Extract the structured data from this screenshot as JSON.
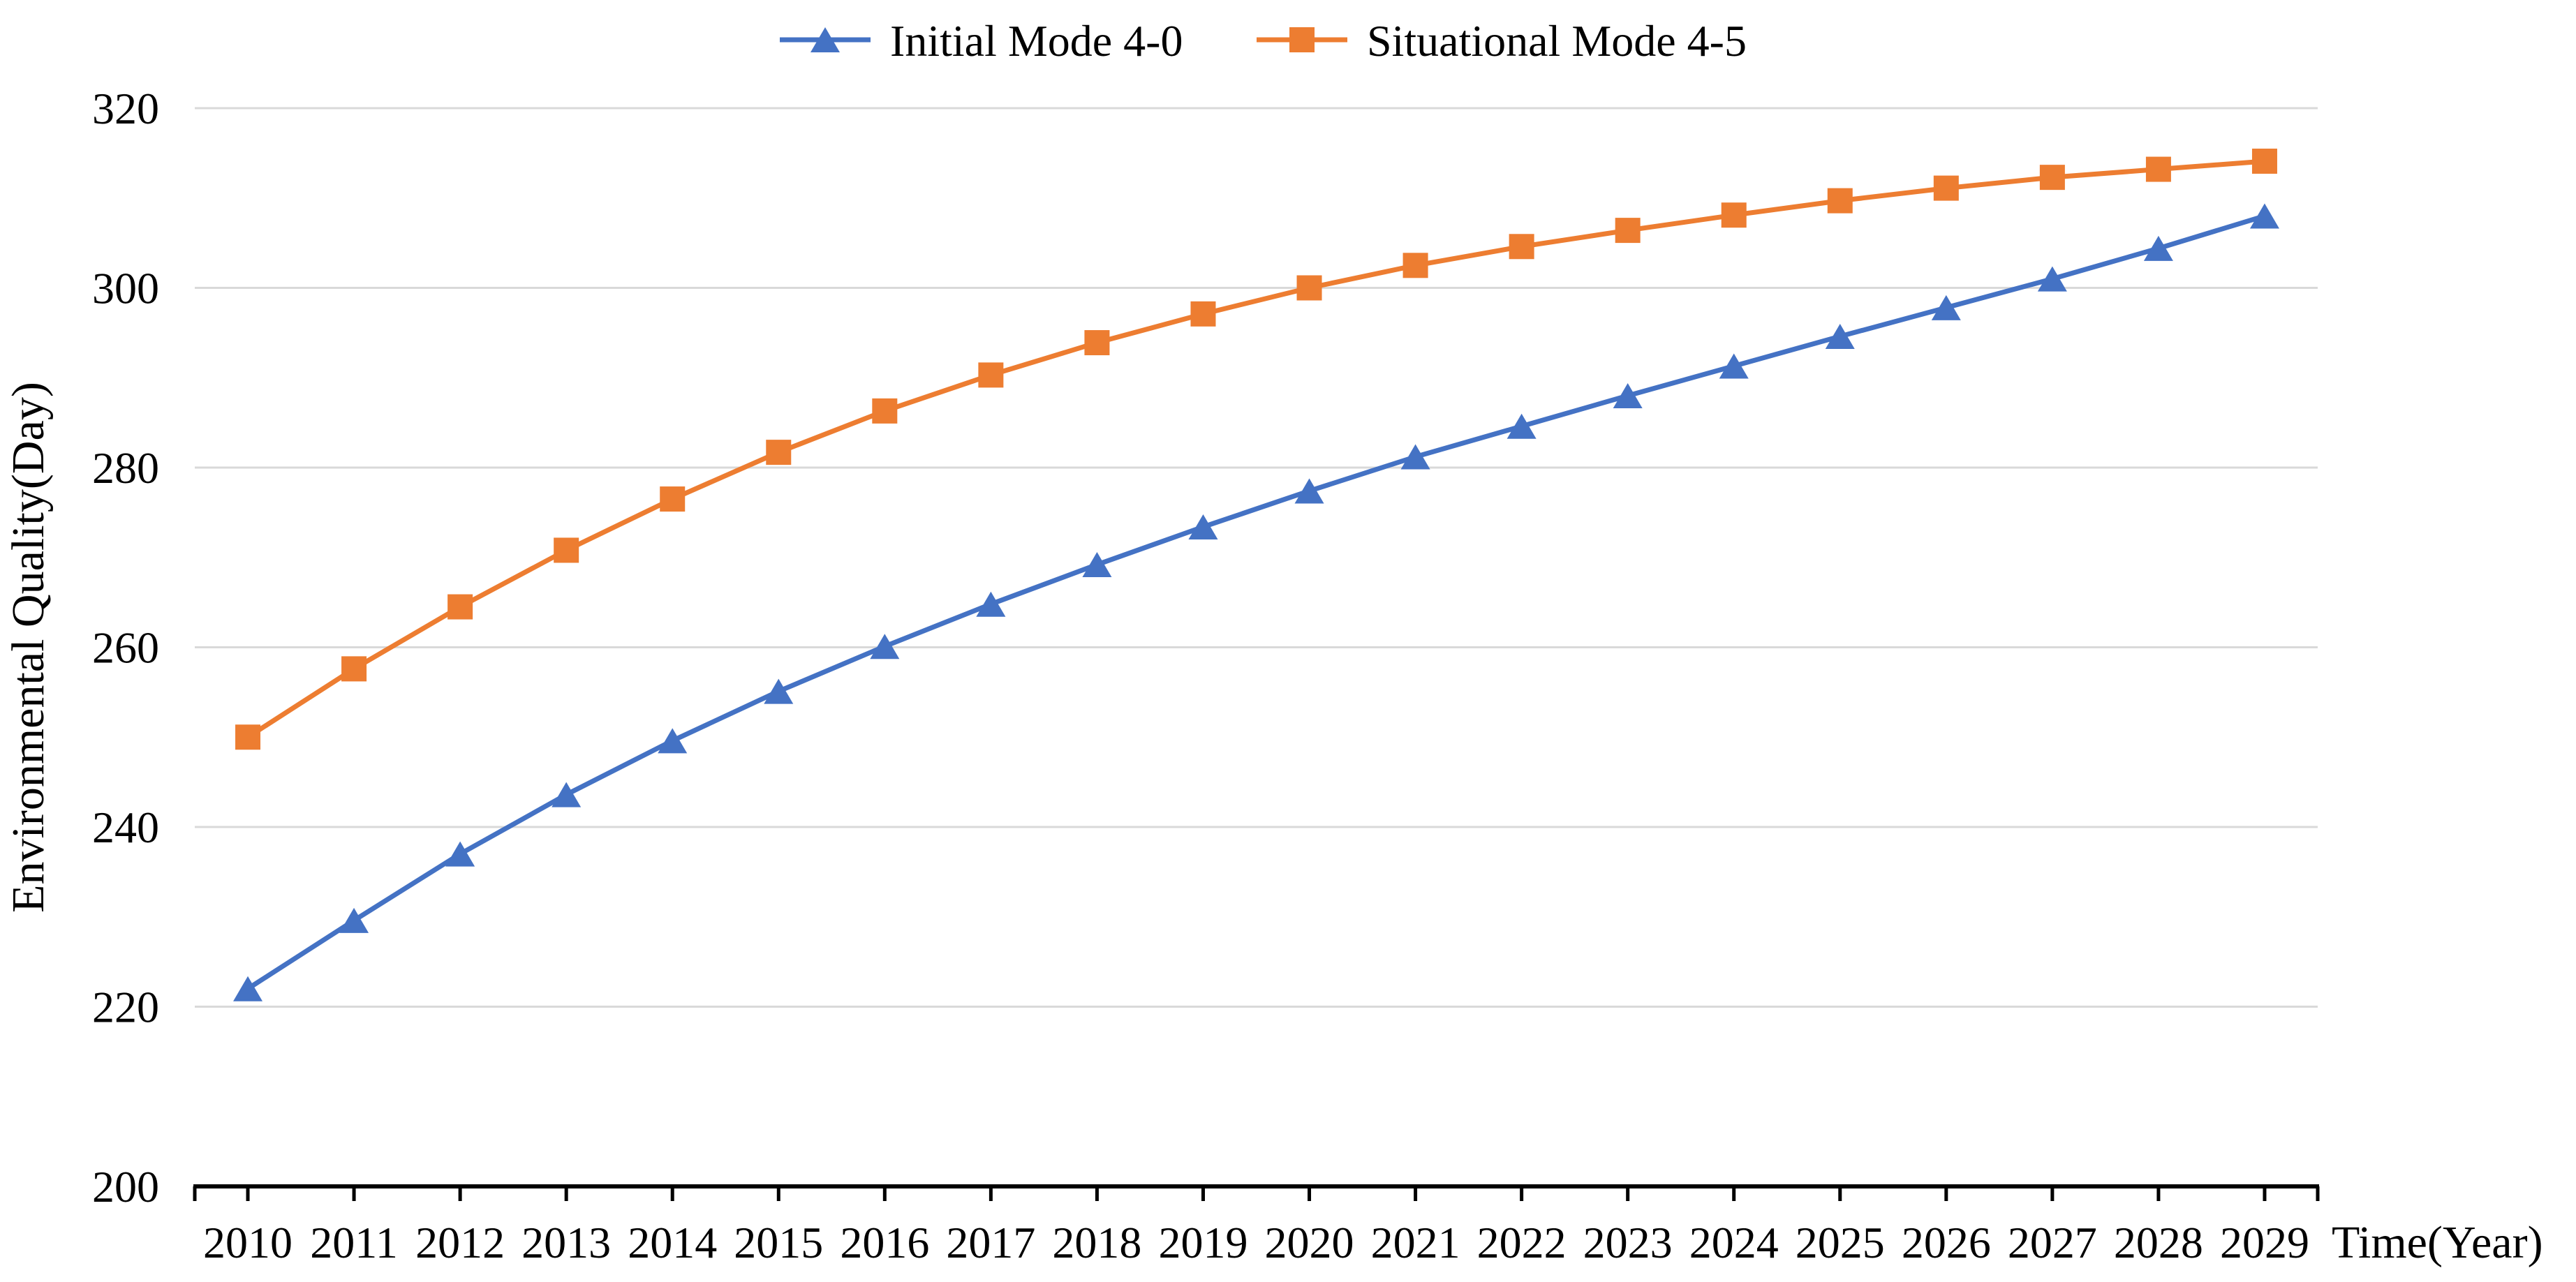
{
  "chart_data": {
    "type": "line",
    "title": "",
    "xlabel": "Time(Year)",
    "ylabel": "Environmental Quality(Day)",
    "x": [
      2010,
      2011,
      2012,
      2013,
      2014,
      2015,
      2016,
      2017,
      2018,
      2019,
      2020,
      2021,
      2022,
      2023,
      2024,
      2025,
      2026,
      2027,
      2028,
      2029
    ],
    "ylim": [
      200,
      320
    ],
    "yticks": [
      200,
      220,
      240,
      260,
      280,
      300,
      320
    ],
    "grid": true,
    "legend_position": "top-center",
    "background_color": "#FFFFFF",
    "text_color": "#000000",
    "gridline_color": "#D9D9D9",
    "axis_color": "#000000",
    "series": [
      {
        "name": "Initial Mode 4-0",
        "marker": "triangle",
        "color": "#4472C4",
        "values": [
          222.0,
          229.6,
          237.0,
          243.6,
          249.6,
          255.1,
          260.1,
          264.8,
          269.2,
          273.4,
          277.4,
          281.2,
          284.6,
          288.0,
          291.3,
          294.6,
          297.8,
          301.0,
          304.4,
          308.0
        ]
      },
      {
        "name": "Situational Mode 4-5",
        "marker": "square",
        "color": "#ED7D31",
        "values": [
          250.0,
          257.6,
          264.5,
          270.8,
          276.5,
          281.7,
          286.3,
          290.3,
          293.9,
          297.1,
          300.0,
          302.5,
          304.6,
          306.4,
          308.1,
          309.7,
          311.1,
          312.3,
          313.2,
          314.1
        ]
      }
    ]
  }
}
